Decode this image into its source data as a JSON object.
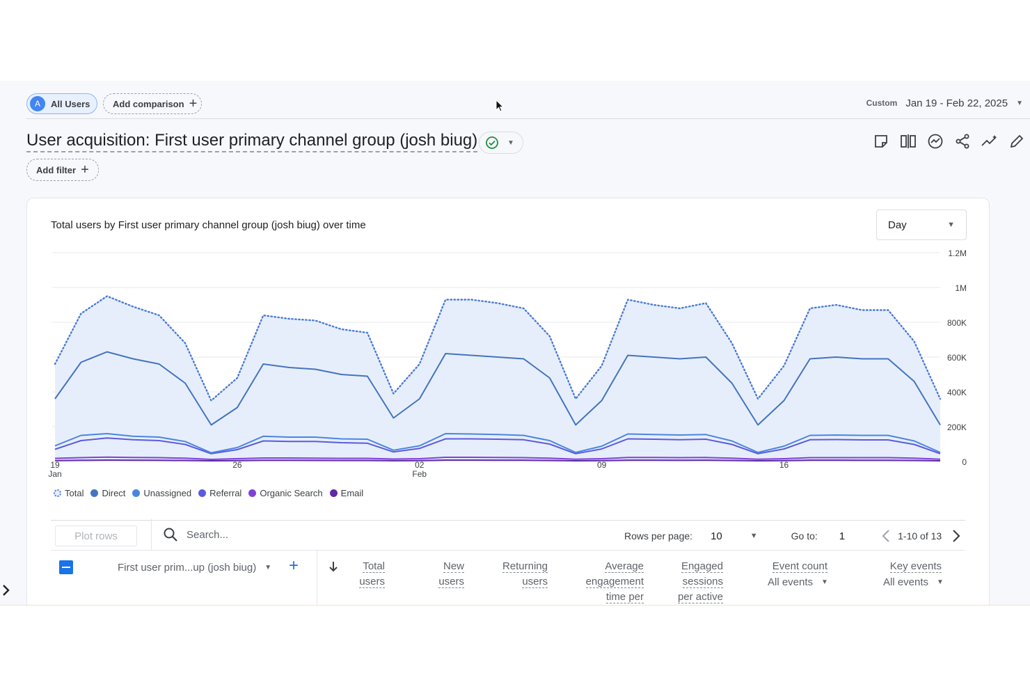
{
  "toolbar": {
    "segment_avatar": "A",
    "segment_label": "All Users",
    "add_comparison_label": "Add comparison",
    "date_range_label": "Custom",
    "date_range_value": "Jan 19 - Feb 22, 2025"
  },
  "header": {
    "title": "User acquisition: First user primary channel group (josh biug)",
    "add_filter_label": "Add filter",
    "icons": [
      "customize-report-icon",
      "compare-icon",
      "insights-icon",
      "share-icon",
      "trend-icon",
      "edit-icon"
    ]
  },
  "chart_card": {
    "title": "Total users by First user primary channel group (josh biug) over time",
    "granularity": "Day"
  },
  "chart_data": {
    "type": "line",
    "x": [
      "Jan 19",
      "Jan 20",
      "Jan 21",
      "Jan 22",
      "Jan 23",
      "Jan 24",
      "Jan 25",
      "Jan 26",
      "Jan 27",
      "Jan 28",
      "Jan 29",
      "Jan 30",
      "Jan 31",
      "Feb 01",
      "Feb 02",
      "Feb 03",
      "Feb 04",
      "Feb 05",
      "Feb 06",
      "Feb 07",
      "Feb 08",
      "Feb 09",
      "Feb 10",
      "Feb 11",
      "Feb 12",
      "Feb 13",
      "Feb 14",
      "Feb 15",
      "Feb 16",
      "Feb 17",
      "Feb 18",
      "Feb 19",
      "Feb 20",
      "Feb 21",
      "Feb 22"
    ],
    "x_ticks": [
      {
        "day": "19",
        "month": "Jan"
      },
      {
        "day": "26",
        "month": ""
      },
      {
        "day": "02",
        "month": "Feb"
      },
      {
        "day": "09",
        "month": ""
      },
      {
        "day": "16",
        "month": ""
      }
    ],
    "y_ticks": [
      "0",
      "200K",
      "400K",
      "600K",
      "800K",
      "1M",
      "1.2M"
    ],
    "ylim": [
      0,
      1200000
    ],
    "series": [
      {
        "name": "Total",
        "color": "#4a7bd6",
        "style": "dotted",
        "values": [
          560000,
          850000,
          950000,
          890000,
          840000,
          680000,
          350000,
          480000,
          840000,
          820000,
          810000,
          760000,
          740000,
          390000,
          560000,
          930000,
          930000,
          910000,
          880000,
          720000,
          360000,
          550000,
          930000,
          900000,
          880000,
          910000,
          680000,
          360000,
          550000,
          880000,
          900000,
          870000,
          870000,
          690000,
          360000
        ]
      },
      {
        "name": "Direct",
        "color": "#4274c0",
        "style": "solid",
        "values": [
          360000,
          570000,
          630000,
          590000,
          560000,
          450000,
          210000,
          310000,
          560000,
          540000,
          530000,
          500000,
          490000,
          250000,
          360000,
          620000,
          610000,
          600000,
          590000,
          480000,
          210000,
          350000,
          610000,
          600000,
          590000,
          600000,
          450000,
          210000,
          350000,
          590000,
          600000,
          590000,
          590000,
          460000,
          210000
        ]
      },
      {
        "name": "Unassigned",
        "color": "#4a86e0",
        "style": "solid",
        "values": [
          90000,
          150000,
          160000,
          145000,
          140000,
          115000,
          50000,
          80000,
          145000,
          140000,
          140000,
          130000,
          128000,
          65000,
          90000,
          160000,
          158000,
          155000,
          150000,
          120000,
          52000,
          88000,
          158000,
          155000,
          152000,
          155000,
          118000,
          52000,
          88000,
          150000,
          152000,
          150000,
          150000,
          118000,
          52000
        ]
      },
      {
        "name": "Referral",
        "color": "#5b5ae0",
        "style": "solid",
        "values": [
          70000,
          120000,
          135000,
          125000,
          120000,
          98000,
          45000,
          68000,
          118000,
          115000,
          115000,
          108000,
          105000,
          55000,
          75000,
          130000,
          130000,
          128000,
          125000,
          100000,
          45000,
          72000,
          130000,
          128000,
          125000,
          128000,
          98000,
          45000,
          72000,
          125000,
          126000,
          124000,
          124000,
          98000,
          45000
        ]
      },
      {
        "name": "Organic Search",
        "color": "#8140d6",
        "style": "solid",
        "values": [
          18000,
          22000,
          25000,
          23000,
          22000,
          19000,
          12000,
          16000,
          20000,
          20000,
          19000,
          18000,
          18000,
          14000,
          16000,
          24000,
          24000,
          23000,
          22000,
          19000,
          13000,
          16000,
          23000,
          23000,
          22000,
          23000,
          19000,
          13000,
          16000,
          22000,
          22000,
          22000,
          22000,
          19000,
          13000
        ]
      },
      {
        "name": "Email",
        "color": "#5e2aa6",
        "style": "solid",
        "values": [
          5000,
          7000,
          8000,
          7500,
          7000,
          6000,
          4000,
          5000,
          7000,
          7000,
          6500,
          6000,
          6000,
          4500,
          5000,
          8000,
          8000,
          7500,
          7500,
          6000,
          4000,
          5000,
          7500,
          7500,
          7000,
          7500,
          6000,
          4000,
          5000,
          7500,
          7500,
          7000,
          7000,
          6000,
          4000
        ]
      }
    ],
    "legend_placement": "bottom-left",
    "grid": true
  },
  "table": {
    "plot_rows_label": "Plot rows",
    "search_placeholder": "Search...",
    "rows_per_page_label": "Rows per page:",
    "rows_per_page_value": "10",
    "goto_label": "Go to:",
    "goto_value": "1",
    "range_label": "1-10 of 13",
    "dimension_label": "First user prim...up (josh biug)",
    "columns": [
      {
        "line1": "Total",
        "line2": "users",
        "line3": ""
      },
      {
        "line1": "New",
        "line2": "users",
        "line3": ""
      },
      {
        "line1": "Returning",
        "line2": "users",
        "line3": ""
      },
      {
        "line1": "Average",
        "line2": "engagement",
        "line3": "time per"
      },
      {
        "line1": "Engaged",
        "line2": "sessions",
        "line3": "per active"
      },
      {
        "line1": "Event count",
        "line2": "",
        "line3": ""
      },
      {
        "line1": "Key events",
        "line2": "",
        "line3": ""
      }
    ],
    "event_count_filter": "All events",
    "key_events_filter": "All events"
  }
}
